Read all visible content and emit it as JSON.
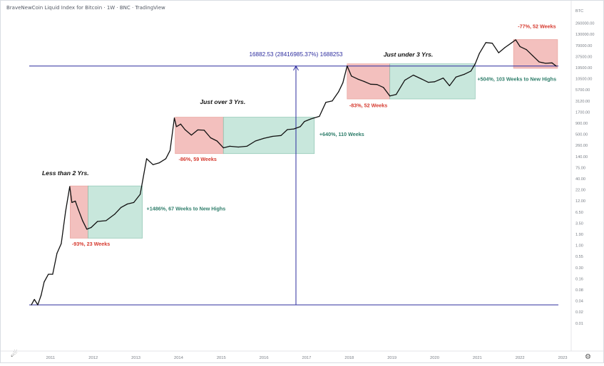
{
  "header": {
    "title": "BraveNewCoin Liquid Index for Bitcoin · 1W · BNC · TradingView"
  },
  "colors": {
    "candle": "#111111",
    "drawdown_fill": "#f2b6b3",
    "drawdown_stroke": "#e79994",
    "recovery_fill": "#bfe3d7",
    "recovery_stroke": "#84c0ac",
    "level_line": "#2c2c9e",
    "red_text": "#d63a2f",
    "green_text": "#2e7d6a",
    "arrow_text": "#2c2c9e",
    "axis_text": "#7a7f87"
  },
  "chart_data": {
    "type": "line",
    "title": "",
    "xlabel": "",
    "ylabel": "",
    "y_scale": "log",
    "y_unit_label": "BTC",
    "ylim": [
      0.0053,
      310000
    ],
    "xlim": [
      2010.4,
      2023.2
    ],
    "x_ticks": [
      "2011",
      "2012",
      "2013",
      "2014",
      "2015",
      "2016",
      "2017",
      "2018",
      "2019",
      "2020",
      "2021",
      "2022",
      "2023"
    ],
    "y_ticks": [
      "260000.00",
      "130000.00",
      "70000.00",
      "37500.00",
      "19500.00",
      "10500.00",
      "5700.00",
      "3120.00",
      "1700.00",
      "900.00",
      "500.00",
      "260.00",
      "140.00",
      "75.00",
      "40.00",
      "22.00",
      "12.00",
      "6.50",
      "3.50",
      "1.90",
      "1.00",
      "0.55",
      "0.30",
      "0.16",
      "0.08",
      "0.04",
      "0.02",
      "0.01"
    ],
    "price_series": {
      "x": [
        2010.55,
        2010.62,
        2010.7,
        2010.78,
        2010.85,
        2010.95,
        2011.05,
        2011.15,
        2011.25,
        2011.35,
        2011.45,
        2011.5,
        2011.58,
        2011.65,
        2011.75,
        2011.85,
        2011.95,
        2012.1,
        2012.3,
        2012.5,
        2012.65,
        2012.8,
        2012.95,
        2013.1,
        2013.25,
        2013.4,
        2013.55,
        2013.7,
        2013.8,
        2013.9,
        2013.95,
        2014.05,
        2014.15,
        2014.3,
        2014.45,
        2014.6,
        2014.75,
        2014.9,
        2015.05,
        2015.2,
        2015.4,
        2015.6,
        2015.8,
        2016.0,
        2016.2,
        2016.4,
        2016.55,
        2016.7,
        2016.85,
        2016.95,
        2017.1,
        2017.3,
        2017.45,
        2017.6,
        2017.75,
        2017.85,
        2017.95,
        2018.05,
        2018.2,
        2018.35,
        2018.5,
        2018.65,
        2018.8,
        2018.95,
        2019.1,
        2019.3,
        2019.5,
        2019.7,
        2019.85,
        2020.0,
        2020.2,
        2020.35,
        2020.5,
        2020.7,
        2020.85,
        2020.95,
        2021.05,
        2021.2,
        2021.35,
        2021.5,
        2021.65,
        2021.8,
        2021.9,
        2022.0,
        2022.15,
        2022.3,
        2022.45,
        2022.6,
        2022.75,
        2022.85
      ],
      "values": [
        0.06,
        0.08,
        0.06,
        0.1,
        0.2,
        0.3,
        0.3,
        0.9,
        1.5,
        8.0,
        30.0,
        13.0,
        14.0,
        9.0,
        5.0,
        3.2,
        3.5,
        4.8,
        5.0,
        7.0,
        10.0,
        12.0,
        13.0,
        20.0,
        130.0,
        95.0,
        105.0,
        130.0,
        200.0,
        1100.0,
        700.0,
        800.0,
        600.0,
        450.0,
        590.0,
        580.0,
        390.0,
        330.0,
        230.0,
        250.0,
        240.0,
        250.0,
        330.0,
        380.0,
        420.0,
        440.0,
        600.0,
        620.0,
        700.0,
        920.0,
        1050.0,
        1200.0,
        2500.0,
        2700.0,
        4400.0,
        7000.0,
        17000.0,
        10000.0,
        8500.0,
        7500.0,
        6500.0,
        6400.0,
        5500.0,
        3500.0,
        3800.0,
        8000.0,
        10500.0,
        8500.0,
        7200.0,
        7400.0,
        9000.0,
        6000.0,
        9500.0,
        11000.0,
        13000.0,
        19000.0,
        33000.0,
        58000.0,
        56000.0,
        34000.0,
        45000.0,
        57000.0,
        67000.0,
        47000.0,
        40000.0,
        29000.0,
        21000.0,
        19500.0,
        20000.0,
        16800.0
      ]
    },
    "horizontal_lines": [
      {
        "y": 0.06
      },
      {
        "y": 16882.53
      }
    ],
    "measure_arrow": {
      "x": 2016.75,
      "from": 0.06,
      "to": 16882.53,
      "label": "16882.53 (28416985.37%) 1688253"
    },
    "cycle_boxes": [
      {
        "kind": "drawdown",
        "x0": 2011.46,
        "x1": 2011.88,
        "y_top": 31.0,
        "y_bottom": 2.0
      },
      {
        "kind": "recovery",
        "x0": 2011.88,
        "x1": 2013.15,
        "y_top": 31.0,
        "y_bottom": 2.0
      },
      {
        "kind": "drawdown",
        "x0": 2013.92,
        "x1": 2015.05,
        "y_top": 1150.0,
        "y_bottom": 170.0
      },
      {
        "kind": "recovery",
        "x0": 2015.05,
        "x1": 2017.18,
        "y_top": 1150.0,
        "y_bottom": 170.0
      },
      {
        "kind": "drawdown",
        "x0": 2017.95,
        "x1": 2018.95,
        "y_top": 19000.0,
        "y_bottom": 3000.0
      },
      {
        "kind": "recovery",
        "x0": 2018.95,
        "x1": 2020.95,
        "y_top": 19000.0,
        "y_bottom": 3000.0
      },
      {
        "kind": "drawdown",
        "x0": 2021.85,
        "x1": 2022.88,
        "y_top": 68000.0,
        "y_bottom": 15000.0
      }
    ],
    "annotations": [
      {
        "text": "Less than 2 Yrs.",
        "style": "italic-black",
        "x": 2010.8,
        "y": 55.0
      },
      {
        "text": "-93%, 23 Weeks",
        "style": "red",
        "x": 2011.5,
        "y": 1.35
      },
      {
        "text": "+1486%, 67 Weeks to New Highs",
        "style": "green",
        "x": 2013.25,
        "y": 8.5
      },
      {
        "text": "Just over 3 Yrs.",
        "style": "italic-black",
        "x": 2014.5,
        "y": 2300.0
      },
      {
        "text": "-86%, 59 Weeks",
        "style": "red",
        "x": 2014.0,
        "y": 115.0
      },
      {
        "text": "+640%, 110 Weeks",
        "style": "green",
        "x": 2017.3,
        "y": 430.0
      },
      {
        "text": "Just under 3 Yrs.",
        "style": "italic-black",
        "x": 2018.8,
        "y": 28000.0
      },
      {
        "text": "-83%, 52 Weeks",
        "style": "red",
        "x": 2018.0,
        "y": 1950.0
      },
      {
        "text": "+504%, 103 Weeks to New Highs",
        "style": "green",
        "x": 2021.0,
        "y": 7800.0
      },
      {
        "text": "-77%, 52 Weeks",
        "style": "red",
        "x": 2021.95,
        "y": 125000.0
      }
    ]
  }
}
